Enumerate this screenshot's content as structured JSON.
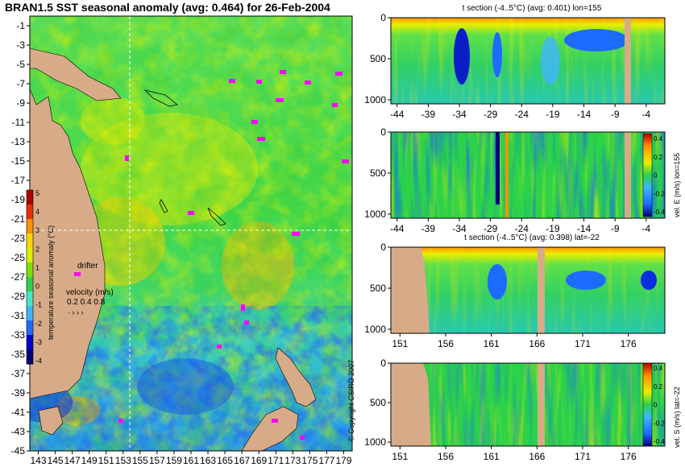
{
  "page": {
    "title": "BRAN1.5 SST seasonal anomaly (avg: 0.464) for 26-Feb-2004",
    "copyright": "© Copyright CSIRO 2007"
  },
  "colors": {
    "land": "#d7ab88",
    "scale": [
      "#00007a",
      "#0000d0",
      "#1e6bff",
      "#3fb5ff",
      "#3fe8c8",
      "#2bd24a",
      "#79e000",
      "#dcef00",
      "#ffd700",
      "#ff9000",
      "#e83000",
      "#b00000"
    ],
    "drifter": "#ff00ff",
    "crosshair": "#ffffff"
  },
  "legend": {
    "colorbar_label": "temperature seasonal anomaly (°C)",
    "colorbar_ticks": [
      "5",
      "4",
      "3",
      "2",
      "1",
      "0",
      "-1",
      "-2",
      "-3",
      "-4"
    ],
    "drifter_label": "drifter",
    "velocity_label": "velocity (m/s)",
    "velocity_values": "0.2 0.4 0.8"
  },
  "chart_data": [
    {
      "type": "heatmap",
      "title": "BRAN1.5 SST seasonal anomaly (avg: 0.464) for 26-Feb-2004",
      "x_ticks": [
        "143",
        "145",
        "147",
        "149",
        "151",
        "153",
        "155",
        "157",
        "159",
        "161",
        "163",
        "165",
        "167",
        "169",
        "171",
        "173",
        "175",
        "177",
        "179"
      ],
      "y_ticks": [
        "-1",
        "-3",
        "-5",
        "-7",
        "-9",
        "-11",
        "-13",
        "-15",
        "-17",
        "-19",
        "-21",
        "-23",
        "-25",
        "-27",
        "-29",
        "-31",
        "-33",
        "-35",
        "-37",
        "-39",
        "-41",
        "-43",
        "-45"
      ],
      "xlim": [
        142,
        180
      ],
      "ylim": [
        -45,
        0
      ],
      "average": 0.464,
      "crosshair": {
        "lon": 155,
        "lat": -22
      },
      "colorbar": {
        "label": "temperature seasonal anomaly (°C)",
        "range": [
          -4,
          5
        ]
      }
    },
    {
      "type": "heatmap",
      "title": "t section (-4..5°C) (avg: 0.401) lon=155",
      "x_ticks": [
        "-44",
        "-39",
        "-34",
        "-29",
        "-24",
        "-19",
        "-14",
        "-9",
        "-4"
      ],
      "y_ticks": [
        "0",
        "500",
        "1000"
      ],
      "xlim": [
        -45,
        -1
      ],
      "ylim": [
        0,
        1050
      ],
      "average": 0.401
    },
    {
      "type": "heatmap",
      "title": "",
      "x_ticks": [
        "-44",
        "-39",
        "-34",
        "-29",
        "-24",
        "-19",
        "-14",
        "-9",
        "-4"
      ],
      "y_ticks": [
        "0",
        "500",
        "1000"
      ],
      "xlim": [
        -45,
        -1
      ],
      "ylim": [
        0,
        1050
      ],
      "colorbar": {
        "label": "vel. E (m/s) lon=155",
        "ticks": [
          "0.4",
          "0.2",
          "0",
          "-0.2",
          "-0.4"
        ],
        "range": [
          -0.4,
          0.4
        ]
      }
    },
    {
      "type": "heatmap",
      "title": "t section (-4..5°C) (avg: 0.398) lat=-22",
      "x_ticks": [
        "151",
        "156",
        "161",
        "166",
        "171",
        "176"
      ],
      "y_ticks": [
        "0",
        "500",
        "1000"
      ],
      "xlim": [
        150,
        180
      ],
      "ylim": [
        0,
        1050
      ],
      "average": 0.398
    },
    {
      "type": "heatmap",
      "title": "",
      "x_ticks": [
        "151",
        "156",
        "161",
        "166",
        "171",
        "176"
      ],
      "y_ticks": [
        "0",
        "500",
        "1000"
      ],
      "xlim": [
        150,
        180
      ],
      "ylim": [
        0,
        1050
      ],
      "colorbar": {
        "label": "vel. S (m/s) lat=-22",
        "ticks": [
          "0.4",
          "0.2",
          "0",
          "-0.2",
          "-0.4"
        ],
        "range": [
          -0.4,
          0.4
        ]
      }
    }
  ]
}
